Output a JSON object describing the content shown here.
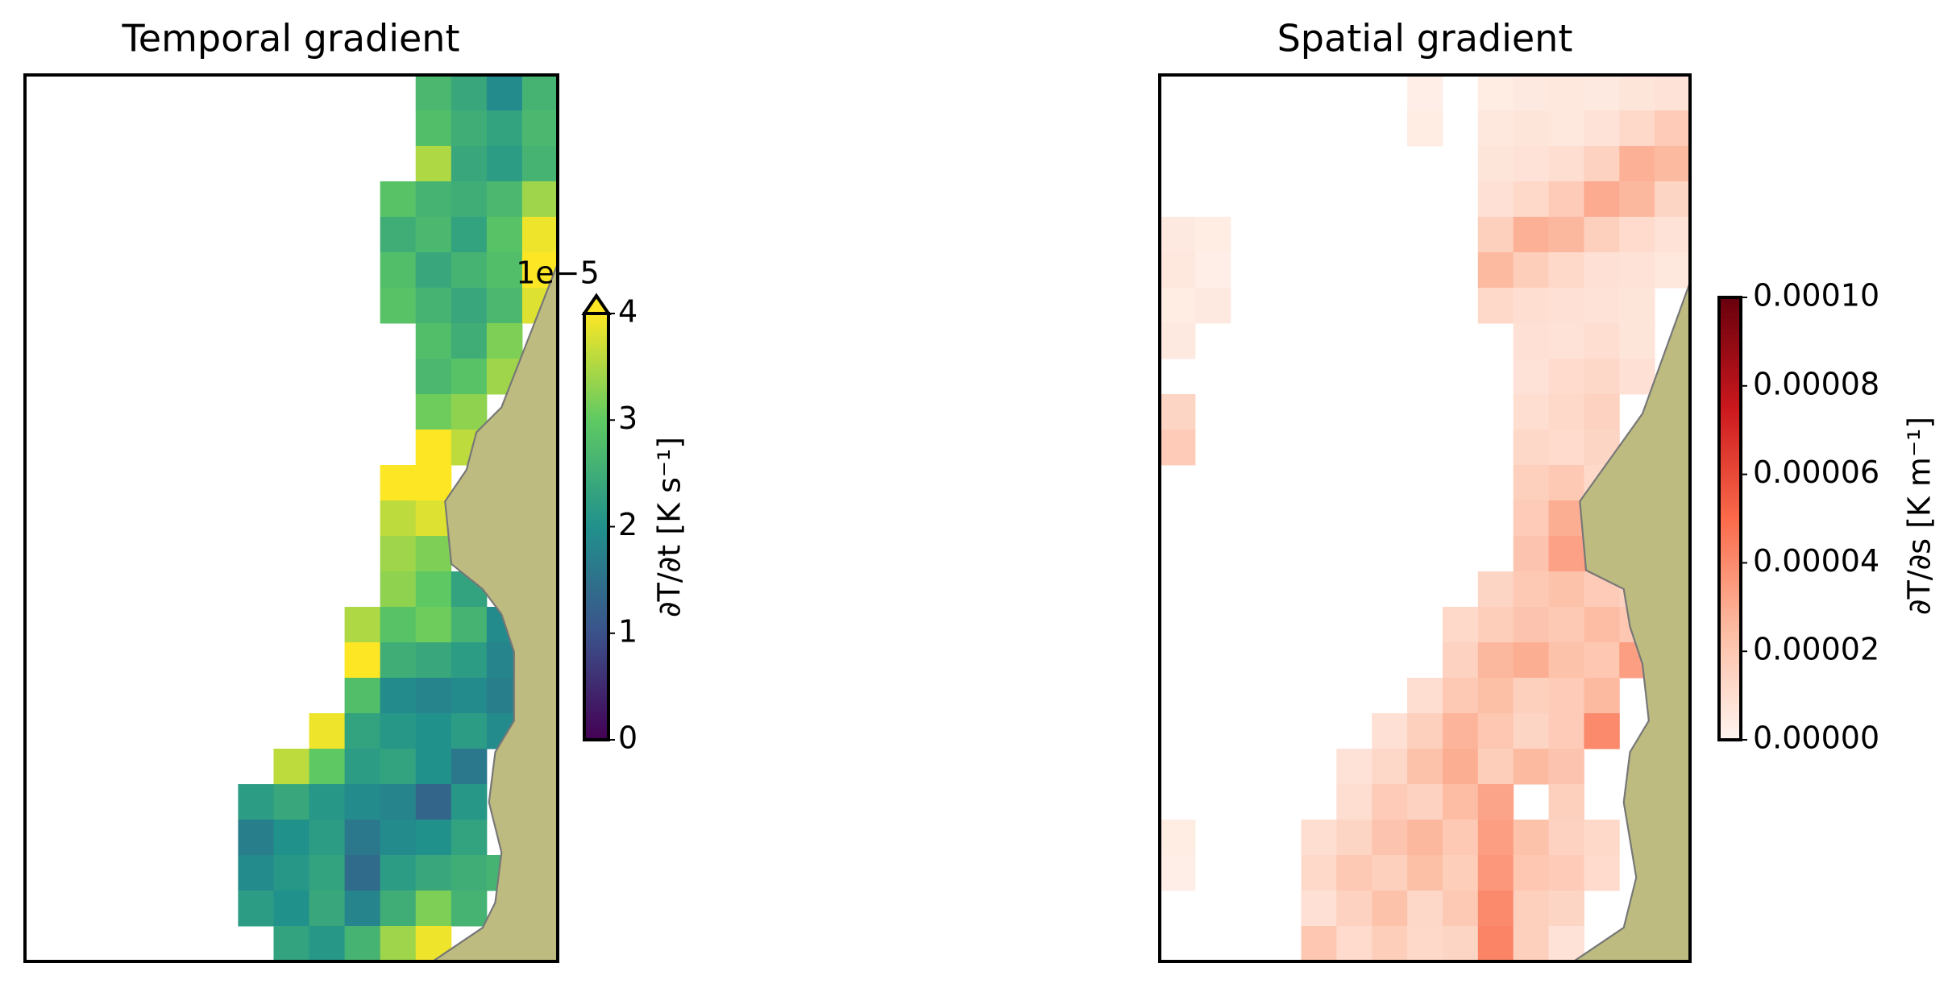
{
  "chart_data": [
    {
      "type": "heatmap",
      "title": "Temporal gradient",
      "colormap": "viridis",
      "extend": "max",
      "colorbar_label": "∂T/∂t [K s⁻¹]",
      "offset_text": "1e−5",
      "clim": [
        0,
        4
      ],
      "cticks": [
        0,
        1,
        2,
        3,
        4
      ],
      "values": [
        [
          null,
          null,
          null,
          null,
          null,
          null,
          null,
          null,
          null,
          null,
          null,
          2.7,
          2.4,
          1.9,
          2.6
        ],
        [
          null,
          null,
          null,
          null,
          null,
          null,
          null,
          null,
          null,
          null,
          null,
          2.8,
          2.5,
          2.3,
          2.7
        ],
        [
          null,
          null,
          null,
          null,
          null,
          null,
          null,
          null,
          null,
          null,
          null,
          3.5,
          2.4,
          2.2,
          2.6
        ],
        [
          null,
          null,
          null,
          null,
          null,
          null,
          null,
          null,
          null,
          null,
          2.9,
          2.6,
          2.5,
          2.7,
          3.4
        ],
        [
          null,
          null,
          null,
          null,
          null,
          null,
          null,
          null,
          null,
          null,
          2.5,
          2.7,
          2.3,
          2.9,
          3.9
        ],
        [
          null,
          null,
          null,
          null,
          null,
          null,
          null,
          null,
          null,
          null,
          2.8,
          2.4,
          2.6,
          2.8,
          4.0
        ],
        [
          null,
          null,
          null,
          null,
          null,
          null,
          null,
          null,
          null,
          null,
          2.9,
          2.6,
          2.4,
          2.7,
          3.8
        ],
        [
          null,
          null,
          null,
          null,
          null,
          null,
          null,
          null,
          null,
          null,
          null,
          2.8,
          2.5,
          3.2,
          null
        ],
        [
          null,
          null,
          null,
          null,
          null,
          null,
          null,
          null,
          null,
          null,
          null,
          2.7,
          2.9,
          3.4,
          null
        ],
        [
          null,
          null,
          null,
          null,
          null,
          null,
          null,
          null,
          null,
          null,
          null,
          3.1,
          3.3,
          null,
          null
        ],
        [
          null,
          null,
          null,
          null,
          null,
          null,
          null,
          null,
          null,
          null,
          null,
          4.0,
          3.6,
          null,
          null
        ],
        [
          null,
          null,
          null,
          null,
          null,
          null,
          null,
          null,
          null,
          null,
          4.0,
          4.0,
          null,
          null,
          null
        ],
        [
          null,
          null,
          null,
          null,
          null,
          null,
          null,
          null,
          null,
          null,
          3.6,
          3.8,
          null,
          null,
          null
        ],
        [
          null,
          null,
          null,
          null,
          null,
          null,
          null,
          null,
          null,
          null,
          3.4,
          3.2,
          null,
          null,
          null
        ],
        [
          null,
          null,
          null,
          null,
          null,
          null,
          null,
          null,
          null,
          null,
          3.3,
          3.0,
          2.3,
          null,
          null
        ],
        [
          null,
          null,
          null,
          null,
          null,
          null,
          null,
          null,
          null,
          3.5,
          2.9,
          3.1,
          2.6,
          1.9,
          null
        ],
        [
          null,
          null,
          null,
          null,
          null,
          null,
          null,
          null,
          null,
          4.0,
          2.5,
          2.4,
          2.2,
          1.8,
          null
        ],
        [
          null,
          null,
          null,
          null,
          null,
          null,
          null,
          null,
          null,
          2.8,
          1.9,
          1.8,
          1.9,
          1.7,
          null
        ],
        [
          null,
          null,
          null,
          null,
          null,
          null,
          null,
          null,
          3.9,
          2.3,
          2.1,
          2.0,
          2.2,
          1.9,
          null
        ],
        [
          null,
          null,
          null,
          null,
          null,
          null,
          null,
          3.6,
          3.0,
          2.2,
          2.3,
          2.0,
          1.6,
          null,
          null
        ],
        [
          null,
          null,
          null,
          null,
          null,
          null,
          2.2,
          2.4,
          2.1,
          1.9,
          1.8,
          1.3,
          2.1,
          null,
          null
        ],
        [
          null,
          null,
          null,
          null,
          null,
          null,
          1.7,
          2.0,
          2.2,
          1.6,
          1.9,
          2.0,
          2.3,
          null,
          null
        ],
        [
          null,
          null,
          null,
          null,
          null,
          null,
          1.9,
          2.1,
          2.3,
          1.4,
          2.2,
          2.4,
          2.5,
          2.6,
          null
        ],
        [
          null,
          null,
          null,
          null,
          null,
          null,
          2.2,
          2.0,
          2.4,
          1.8,
          2.5,
          3.2,
          2.6,
          null,
          null
        ],
        [
          null,
          null,
          null,
          null,
          null,
          null,
          null,
          2.3,
          2.1,
          2.6,
          3.4,
          3.9,
          null,
          null,
          null
        ]
      ]
    },
    {
      "type": "heatmap",
      "title": "Spatial gradient",
      "colormap": "reds",
      "colorbar_label": "∂T/∂s [K m⁻¹]",
      "clim": [
        0,
        0.0001
      ],
      "cticks": [
        {
          "value": 0,
          "label": "0.00000"
        },
        {
          "value": 2e-05,
          "label": "0.00002"
        },
        {
          "value": 4e-05,
          "label": "0.00004"
        },
        {
          "value": 6e-05,
          "label": "0.00006"
        },
        {
          "value": 8e-05,
          "label": "0.00008"
        },
        {
          "value": 0.0001,
          "label": "0.00010"
        }
      ],
      "values": [
        [
          null,
          null,
          null,
          null,
          null,
          null,
          null,
          3e-06,
          null,
          4e-06,
          5e-06,
          6e-06,
          5e-06,
          7e-06,
          8e-06
        ],
        [
          null,
          null,
          null,
          null,
          null,
          null,
          null,
          4e-06,
          null,
          6e-06,
          7e-06,
          6e-06,
          8e-06,
          1.2e-05,
          1.8e-05
        ],
        [
          null,
          null,
          null,
          null,
          null,
          null,
          null,
          null,
          null,
          7e-06,
          8e-06,
          1e-05,
          1.5e-05,
          2.8e-05,
          2.5e-05
        ],
        [
          null,
          null,
          null,
          null,
          null,
          null,
          null,
          null,
          null,
          9e-06,
          1.2e-05,
          1.8e-05,
          3e-05,
          2.6e-05,
          1.4e-05
        ],
        [
          5e-06,
          4e-06,
          null,
          null,
          null,
          null,
          null,
          null,
          null,
          1.6e-05,
          2.8e-05,
          2.6e-05,
          1.6e-05,
          1.1e-05,
          8e-06
        ],
        [
          6e-06,
          3e-06,
          null,
          null,
          null,
          null,
          null,
          null,
          null,
          2.5e-05,
          1.7e-05,
          1.2e-05,
          9e-06,
          8e-06,
          6e-06
        ],
        [
          4e-06,
          5e-06,
          null,
          null,
          null,
          null,
          null,
          null,
          null,
          1.2e-05,
          1e-05,
          9e-06,
          8e-06,
          7e-06,
          null
        ],
        [
          5e-06,
          null,
          null,
          null,
          null,
          null,
          null,
          null,
          null,
          null,
          9e-06,
          8e-06,
          1e-05,
          7e-06,
          null
        ],
        [
          null,
          null,
          null,
          null,
          null,
          null,
          null,
          null,
          null,
          null,
          8e-06,
          1.1e-05,
          1.3e-05,
          9e-06,
          null
        ],
        [
          1.4e-05,
          null,
          null,
          null,
          null,
          null,
          null,
          null,
          null,
          null,
          1e-05,
          1.2e-05,
          1.5e-05,
          null,
          null
        ],
        [
          1.8e-05,
          null,
          null,
          null,
          null,
          null,
          null,
          null,
          null,
          null,
          1.3e-05,
          1.1e-05,
          1.4e-05,
          null,
          null
        ],
        [
          null,
          null,
          null,
          null,
          null,
          null,
          null,
          null,
          null,
          null,
          1.6e-05,
          1.9e-05,
          1.2e-05,
          null,
          null
        ],
        [
          null,
          null,
          null,
          null,
          null,
          null,
          null,
          null,
          null,
          null,
          1.8e-05,
          2.9e-05,
          4.6e-05,
          null,
          null
        ],
        [
          null,
          null,
          null,
          null,
          null,
          null,
          null,
          null,
          null,
          null,
          2.1e-05,
          3.3e-05,
          3.6e-05,
          null,
          null
        ],
        [
          null,
          null,
          null,
          null,
          null,
          null,
          null,
          null,
          null,
          1.4e-05,
          1.9e-05,
          2.2e-05,
          1.8e-05,
          1.5e-05,
          null
        ],
        [
          null,
          null,
          null,
          null,
          null,
          null,
          null,
          null,
          1.2e-05,
          1.7e-05,
          2.1e-05,
          1.9e-05,
          2.4e-05,
          2e-05,
          null
        ],
        [
          null,
          null,
          null,
          null,
          null,
          null,
          null,
          null,
          1.5e-05,
          2.6e-05,
          2.9e-05,
          2.2e-05,
          2e-05,
          3.4e-05,
          null
        ],
        [
          null,
          null,
          null,
          null,
          null,
          null,
          null,
          1e-05,
          1.9e-05,
          2.3e-05,
          1.6e-05,
          1.8e-05,
          2.5e-05,
          null,
          null
        ],
        [
          null,
          null,
          null,
          null,
          null,
          null,
          9e-06,
          1.6e-05,
          2.7e-05,
          2e-05,
          1.4e-05,
          1.8e-05,
          4e-05,
          null,
          null
        ],
        [
          null,
          null,
          null,
          null,
          null,
          8e-06,
          1.3e-05,
          2.2e-05,
          2.9e-05,
          1.7e-05,
          2.5e-05,
          2.1e-05,
          null,
          null,
          null
        ],
        [
          null,
          null,
          null,
          null,
          null,
          1e-05,
          1.8e-05,
          1.5e-05,
          2.4e-05,
          3.2e-05,
          null,
          1.6e-05,
          null,
          null,
          null
        ],
        [
          4e-06,
          null,
          null,
          null,
          1e-05,
          1.4e-05,
          2.1e-05,
          2.6e-05,
          1.9e-05,
          3.4e-05,
          2.2e-05,
          1.5e-05,
          1.2e-05,
          null,
          null
        ],
        [
          3e-06,
          null,
          null,
          null,
          1.2e-05,
          1.9e-05,
          1.6e-05,
          2.3e-05,
          1.7e-05,
          3.6e-05,
          2e-05,
          1.8e-05,
          1.1e-05,
          null,
          null
        ],
        [
          null,
          null,
          null,
          null,
          9e-06,
          1.5e-05,
          2.2e-05,
          1.3e-05,
          1.9e-05,
          4e-05,
          1.6e-05,
          1.4e-05,
          null,
          null,
          null
        ],
        [
          null,
          null,
          null,
          null,
          2e-05,
          1.1e-05,
          1.7e-05,
          1.2e-05,
          1.4e-05,
          4.2e-05,
          1.6e-05,
          8e-06,
          null,
          null,
          null
        ]
      ]
    }
  ]
}
